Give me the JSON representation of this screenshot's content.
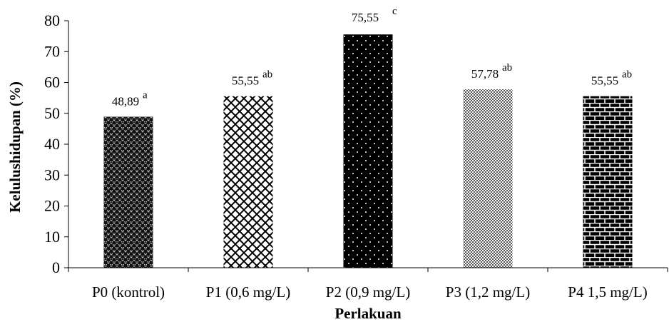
{
  "chart_data": {
    "type": "bar",
    "title": "",
    "xlabel": "Perlakuan",
    "ylabel": "Kelulushidupan (%)",
    "ylim": [
      0,
      80
    ],
    "yticks": [
      0,
      10,
      20,
      30,
      40,
      50,
      60,
      70,
      80
    ],
    "ytick_labels": [
      "0",
      "10",
      "20",
      "30",
      "40",
      "50",
      "60",
      "70",
      "80"
    ],
    "grid": false,
    "categories": [
      "P0 (kontrol)",
      "P1 (0,6 mg/L)",
      "P2 (0,9 mg/L)",
      "P3 (1,2 mg/L)",
      "P4 1,5 mg/L)"
    ],
    "values": [
      48.89,
      55.55,
      75.55,
      57.78,
      55.55
    ],
    "value_labels": [
      "48,89",
      "55,55",
      "75,55",
      "57,78",
      "55,55"
    ],
    "significance_letters": [
      "a",
      "ab",
      "c",
      "ab",
      "ab"
    ],
    "fill_patterns": [
      "dotted-crosshatch",
      "diagonal-lattice",
      "dots-on-black",
      "fine-checker",
      "brick"
    ]
  }
}
